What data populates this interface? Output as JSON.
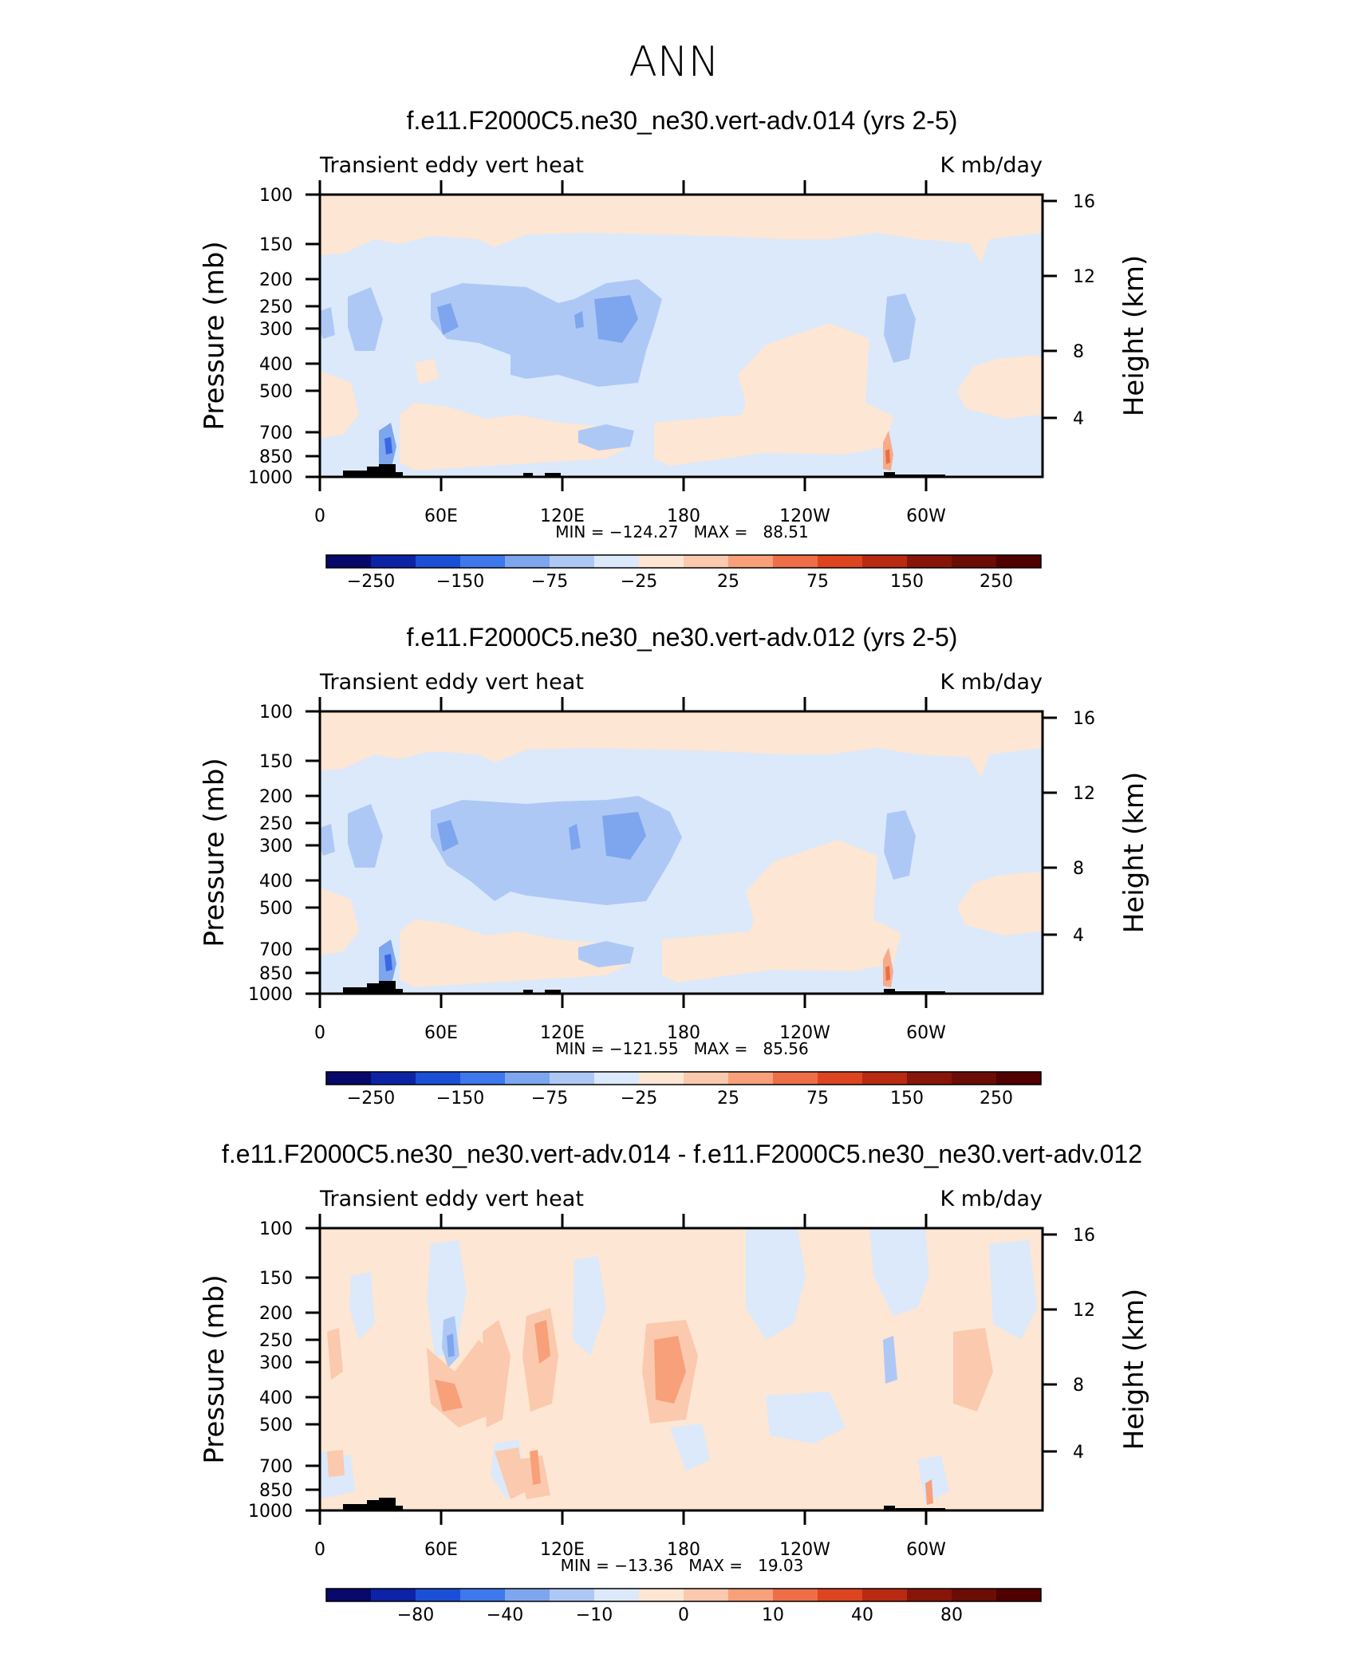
{
  "figure_title": "ANN",
  "colors": {
    "accent_blue": "#dbe9fb",
    "accent_orange": "#fde6d3"
  },
  "chart_data": [
    {
      "type": "heatmap",
      "title": "f.e11.F2000C5.ne30_ne30.vert-adv.014 (yrs 2-5)",
      "left_label": "Transient eddy vert heat",
      "right_label": "K mb/day",
      "ylabel": "Pressure (mb)",
      "ylabel_right": "Height (km)",
      "xlabel": "",
      "x_ticks": [
        "0",
        "60E",
        "120E",
        "180",
        "120W",
        "60W"
      ],
      "y_ticks": [
        "100",
        "150",
        "200",
        "250",
        "300",
        "400",
        "500",
        "700",
        "850",
        "1000"
      ],
      "y_ticks_right": [
        "16",
        "12",
        "8",
        "4"
      ],
      "min_max": "MIN = −124.27   MAX =   88.51",
      "colorbar_labels": [
        "−250",
        "−150",
        "−75",
        "−25",
        "25",
        "75",
        "150",
        "250"
      ]
    },
    {
      "type": "heatmap",
      "title": "f.e11.F2000C5.ne30_ne30.vert-adv.012 (yrs 2-5)",
      "left_label": "Transient eddy vert heat",
      "right_label": "K mb/day",
      "ylabel": "Pressure (mb)",
      "ylabel_right": "Height (km)",
      "xlabel": "",
      "x_ticks": [
        "0",
        "60E",
        "120E",
        "180",
        "120W",
        "60W"
      ],
      "y_ticks": [
        "100",
        "150",
        "200",
        "250",
        "300",
        "400",
        "500",
        "700",
        "850",
        "1000"
      ],
      "y_ticks_right": [
        "16",
        "12",
        "8",
        "4"
      ],
      "min_max": "MIN = −121.55   MAX =   85.56",
      "colorbar_labels": [
        "−250",
        "−150",
        "−75",
        "−25",
        "25",
        "75",
        "150",
        "250"
      ]
    },
    {
      "type": "heatmap",
      "title": "f.e11.F2000C5.ne30_ne30.vert-adv.014 - f.e11.F2000C5.ne30_ne30.vert-adv.012",
      "left_label": "Transient eddy vert heat",
      "right_label": "K mb/day",
      "ylabel": "Pressure (mb)",
      "ylabel_right": "Height (km)",
      "xlabel": "",
      "x_ticks": [
        "0",
        "60E",
        "120E",
        "180",
        "120W",
        "60W"
      ],
      "y_ticks": [
        "100",
        "150",
        "200",
        "250",
        "300",
        "400",
        "500",
        "700",
        "850",
        "1000"
      ],
      "y_ticks_right": [
        "16",
        "12",
        "8",
        "4"
      ],
      "min_max": "MIN = −13.36   MAX =   19.03",
      "colorbar_labels": [
        "−80",
        "−40",
        "−10",
        "0",
        "10",
        "40",
        "80"
      ]
    }
  ]
}
